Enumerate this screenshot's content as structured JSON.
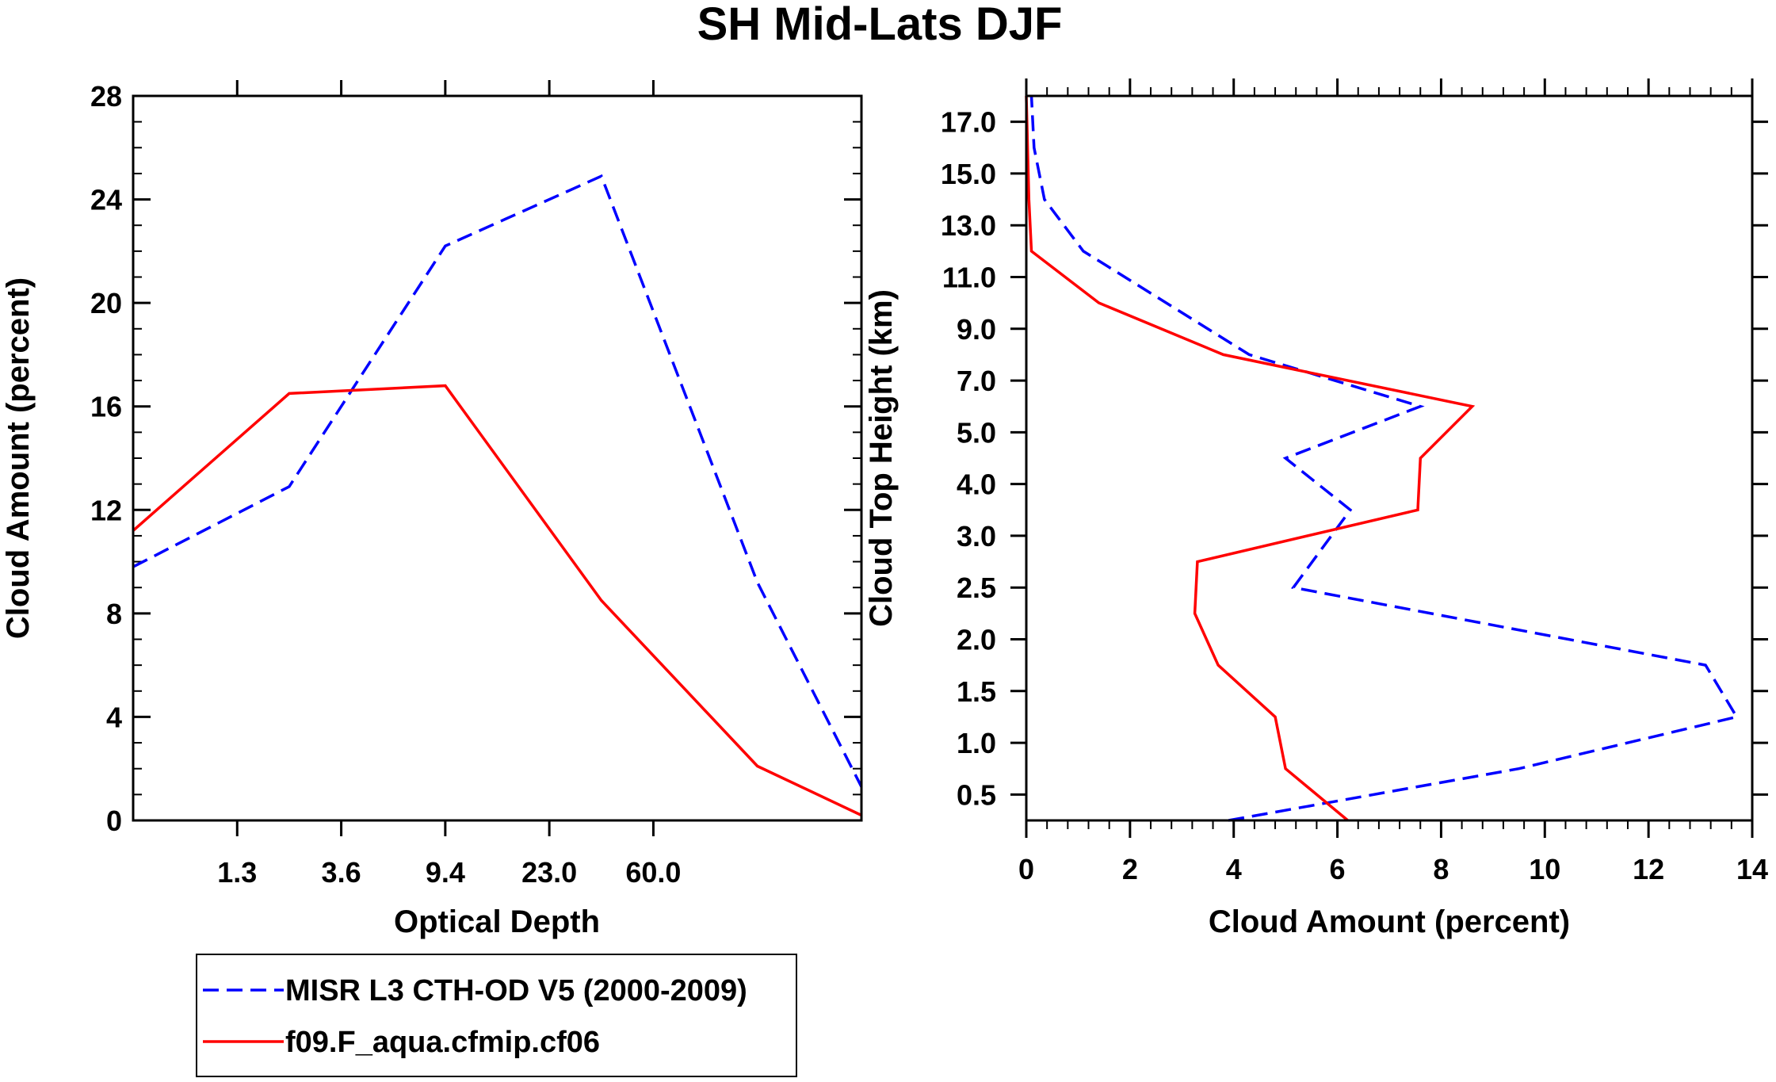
{
  "title": "SH Mid-Lats DJF",
  "colors": {
    "obs": "#0000ff",
    "model": "#ff0000",
    "axis": "#000000"
  },
  "legend": {
    "entries": [
      "MISR L3 CTH-OD V5 (2000-2009)",
      "f09.F_aqua.cfmip.cf06"
    ]
  },
  "chart_data": [
    {
      "type": "line",
      "xlabel": "Optical Depth",
      "ylabel": "Cloud Amount (percent)",
      "xlim": [
        0,
        7
      ],
      "ylim": [
        0,
        28
      ],
      "x_tick_positions": [
        1,
        2,
        3,
        4,
        5
      ],
      "x_tick_labels": [
        "1.3",
        "3.6",
        "9.4",
        "23.0",
        "60.0"
      ],
      "y_ticks": [
        0,
        4,
        8,
        12,
        16,
        20,
        24,
        28
      ],
      "y_tick_labels": [
        "0",
        "4",
        "8",
        "12",
        "16",
        "20",
        "24",
        "28"
      ],
      "series": [
        {
          "name": "MISR L3 CTH-OD V5 (2000-2009)",
          "style": "dashed",
          "x": [
            0,
            1.5,
            3,
            4.5,
            6,
            7
          ],
          "values": [
            9.8,
            12.9,
            22.2,
            24.9,
            9.2,
            1.3
          ]
        },
        {
          "name": "f09.F_aqua.cfmip.cf06",
          "style": "solid",
          "x": [
            0,
            1.5,
            3,
            4.5,
            6,
            7
          ],
          "values": [
            11.2,
            16.5,
            16.8,
            8.5,
            2.1,
            0.2
          ]
        }
      ]
    },
    {
      "type": "line",
      "xlabel": "Cloud Amount (percent)",
      "ylabel": "Cloud Top Height (km)",
      "xlim": [
        0,
        14
      ],
      "ylim": [
        0,
        14
      ],
      "x_ticks": [
        0,
        2,
        4,
        6,
        8,
        10,
        12,
        14
      ],
      "x_tick_labels": [
        "0",
        "2",
        "4",
        "6",
        "8",
        "10",
        "12",
        "14"
      ],
      "y_tick_positions": [
        0.5,
        1.5,
        2.5,
        3.5,
        4.5,
        5.5,
        6.5,
        7.5,
        8.5,
        9.5,
        10.5,
        11.5,
        12.5,
        13.5
      ],
      "y_tick_labels": [
        "0.5",
        "1.0",
        "1.5",
        "2.0",
        "2.5",
        "3.0",
        "4.0",
        "5.0",
        "7.0",
        "9.0",
        "11.0",
        "13.0",
        "15.0",
        "17.0"
      ],
      "series": [
        {
          "name": "MISR L3 CTH-OD V5 (2000-2009)",
          "style": "dashed",
          "values": [
            3.9,
            9.5,
            13.7,
            13.1,
            5.15,
            6.25,
            5.0,
            7.6,
            4.3,
            1.1,
            0.35,
            0.15,
            0.1
          ],
          "y": [
            0,
            1,
            2,
            3,
            4.5,
            6,
            7,
            8,
            9,
            11,
            12,
            13,
            14
          ]
        },
        {
          "name": "f09.F_aqua.cfmip.cf06",
          "style": "solid",
          "values": [
            6.2,
            5.0,
            4.8,
            3.7,
            3.25,
            3.3,
            7.55,
            7.6,
            8.6,
            3.8,
            1.4,
            0.1,
            0.05,
            0.0
          ],
          "y": [
            0,
            1,
            2,
            3,
            4,
            5,
            6,
            7,
            8,
            9,
            10,
            11,
            12,
            14
          ]
        }
      ]
    }
  ]
}
